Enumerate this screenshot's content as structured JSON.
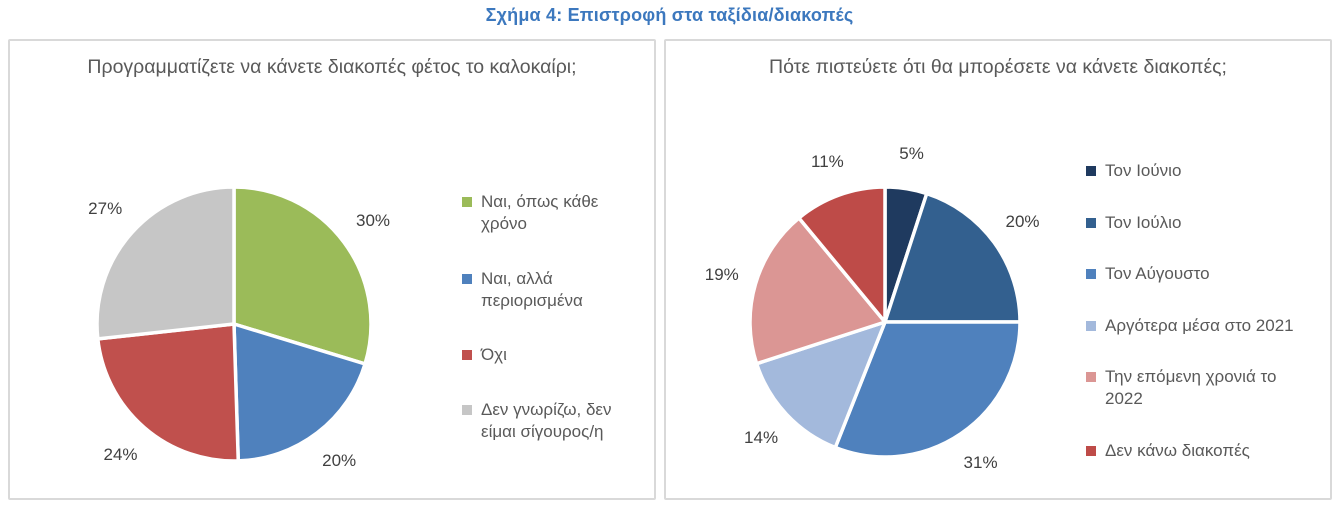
{
  "figure_title": "Σχήμα 4: Επιστροφή στα ταξίδια/διακοπές",
  "colors": {
    "figure_title": "#3C78BE",
    "chart_text": "#595959",
    "label_text": "#404040",
    "panel_border": "#D9D9D9",
    "slice_divider": "#FFFFFF"
  },
  "chart_data": [
    {
      "type": "pie",
      "title": "Προγραμματίζετε να κάνετε διακοπές φέτος το καλοκαίρι;",
      "labels": [
        "Ναι, όπως κάθε χρόνο",
        "Ναι, αλλά περιορισμένα",
        "Όχι",
        "Δεν γνωρίζω, δεν είμαι σίγουρος/η"
      ],
      "values": [
        30,
        20,
        24,
        27
      ],
      "value_labels": [
        "30%",
        "20%",
        "24%",
        "27%"
      ],
      "colors": [
        "#9BBB59",
        "#4F81BD",
        "#C0504D",
        "#C6C6C6"
      ],
      "legend_position": "right",
      "start_angle_deg": 0,
      "direction": "clockwise",
      "labels_outside": true
    },
    {
      "type": "pie",
      "title": "Πότε πιστεύετε ότι θα μπορέσετε να κάνετε διακοπές;",
      "labels": [
        "Τον Ιούνιο",
        "Τον Ιούλιο",
        "Τον Αύγουστο",
        "Αργότερα μέσα στο 2021",
        "Την επόμενη χρονιά το 2022",
        "Δεν κάνω διακοπές"
      ],
      "values": [
        5,
        20,
        31,
        14,
        19,
        11
      ],
      "value_labels": [
        "5%",
        "20%",
        "31%",
        "14%",
        "19%",
        "11%"
      ],
      "colors": [
        "#1F3A5F",
        "#33608F",
        "#4F81BD",
        "#A3B9DC",
        "#DB9694",
        "#BE4B48"
      ],
      "legend_position": "right",
      "start_angle_deg": 0,
      "direction": "clockwise",
      "labels_outside": true
    }
  ]
}
